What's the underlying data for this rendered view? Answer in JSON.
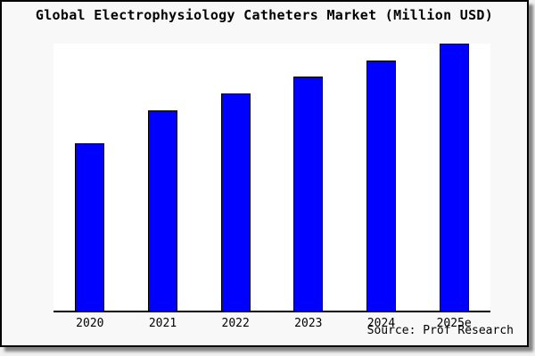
{
  "source": "Source: Prof Research",
  "colors": {
    "bar_fill": "#0000ff",
    "bar_border": "#000000",
    "plot_bg": "#ffffff",
    "card_bg": "#f8f8f8",
    "page_bg": "#f0f0f0",
    "axis": "#000000",
    "text": "#000000"
  },
  "chart_data": {
    "type": "bar",
    "title": "Global Electrophysiology Catheters Market (Million USD)",
    "categories": [
      "2020",
      "2021",
      "2022",
      "2023",
      "2024",
      "2025e"
    ],
    "values": [
      62.7,
      75.0,
      81.3,
      87.7,
      93.7,
      100.0
    ],
    "values_note": "y-axis is unlabeled in the chart; values are relative index with 2025e bar = 100 (tallest bar reaches plot top)",
    "xlabel": "",
    "ylabel": "",
    "ylim": [
      0,
      100
    ],
    "grid": false,
    "legend": false,
    "y_axis_visible": false,
    "x_axis_visible": true
  }
}
